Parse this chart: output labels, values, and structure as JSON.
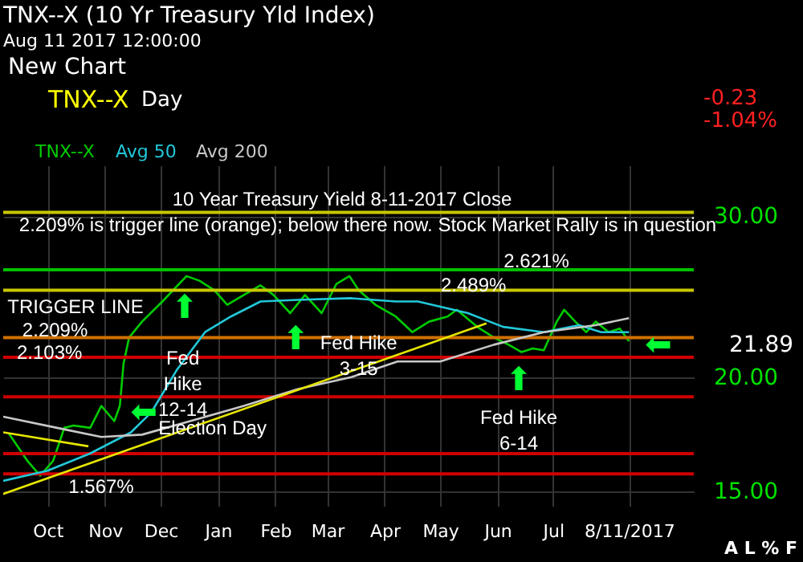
{
  "chart_data": {
    "type": "line",
    "title": "TNX--X (10 Yr Treasury Yld Index)",
    "subtitle": "Aug 11 2017 12:00:00",
    "log": "y",
    "grid": true,
    "legend": "top left",
    "marker": "none",
    "line_style": "solid",
    "xlim": [
      "2016-09-07",
      "2017-09-15"
    ],
    "xticks": [
      {
        "value": "2016-10-01",
        "label": "Oct"
      },
      {
        "value": "2016-11-01",
        "label": "Nov"
      },
      {
        "value": "2016-12-01",
        "label": "Dec"
      },
      {
        "value": "2017-01-01",
        "label": "Jan"
      },
      {
        "value": "2017-02-01",
        "label": "Feb"
      },
      {
        "value": "2017-03-01",
        "label": "Mar"
      },
      {
        "value": "2017-04-01",
        "label": "Apr"
      },
      {
        "value": "2017-05-01",
        "label": "May"
      },
      {
        "value": "2017-06-01",
        "label": "Jun"
      },
      {
        "value": "2017-07-01",
        "label": "Jul"
      },
      {
        "value": "2017-08-11",
        "label": "8/11/2017"
      }
    ],
    "ylim": [
      14.46,
      34.1
    ],
    "yticks": [
      {
        "value": 15,
        "label": "15.00"
      },
      {
        "value": 20,
        "label": "20.00"
      },
      {
        "value": 30,
        "label": "30.00"
      }
    ],
    "series": [
      {
        "name": "TNX--X",
        "color": "#00cc00",
        "x": [
          "2016-09-10",
          "2016-09-20",
          "2016-09-27",
          "2016-10-04",
          "2016-10-10",
          "2016-10-15",
          "2016-10-24",
          "2016-10-30",
          "2016-11-06",
          "2016-11-09",
          "2016-11-11",
          "2016-11-14",
          "2016-11-21",
          "2016-12-02",
          "2016-12-15",
          "2016-12-22",
          "2016-12-30",
          "2017-01-06",
          "2017-01-15",
          "2017-01-24",
          "2017-01-31",
          "2017-02-09",
          "2017-02-17",
          "2017-02-26",
          "2017-03-06",
          "2017-03-13",
          "2017-03-18",
          "2017-03-27",
          "2017-04-07",
          "2017-04-16",
          "2017-04-25",
          "2017-05-05",
          "2017-05-10",
          "2017-05-21",
          "2017-05-30",
          "2017-06-07",
          "2017-06-14",
          "2017-06-20",
          "2017-06-26",
          "2017-07-03",
          "2017-07-07",
          "2017-07-13",
          "2017-07-19",
          "2017-07-24",
          "2017-07-31",
          "2017-08-06",
          "2017-08-11"
        ],
        "values": [
          17.36,
          16.2,
          15.6,
          16.2,
          17.6,
          17.7,
          17.6,
          18.6,
          17.9,
          18.6,
          20.7,
          22.1,
          23.0,
          24.2,
          25.8,
          25.5,
          24.9,
          24.0,
          24.6,
          25.2,
          24.6,
          23.5,
          24.6,
          23.5,
          25.3,
          25.8,
          24.9,
          24.0,
          23.3,
          22.4,
          23.0,
          23.3,
          23.7,
          22.7,
          22.1,
          21.7,
          21.3,
          21.5,
          21.4,
          23.0,
          23.7,
          23.0,
          22.4,
          23.0,
          22.4,
          22.6,
          21.89
        ]
      },
      {
        "name": "Avg 50",
        "color": "#22c8d8",
        "x": [
          "2016-09-07",
          "2016-10-01",
          "2016-10-24",
          "2016-11-15",
          "2016-11-26",
          "2016-12-10",
          "2016-12-25",
          "2017-01-08",
          "2017-01-24",
          "2017-02-13",
          "2017-03-14",
          "2017-04-07",
          "2017-04-19",
          "2017-05-16",
          "2017-06-04",
          "2017-06-26",
          "2017-07-15",
          "2017-07-27",
          "2017-08-11"
        ],
        "values": [
          15.4,
          15.8,
          16.5,
          17.4,
          18.3,
          20.4,
          22.4,
          23.3,
          24.2,
          24.3,
          24.4,
          24.2,
          24.2,
          23.5,
          22.7,
          22.4,
          22.8,
          22.4,
          22.4
        ]
      },
      {
        "name": "Avg 200",
        "color": "#c8c8c8",
        "x": [
          "2016-09-07",
          "2016-10-06",
          "2016-10-30",
          "2016-11-21",
          "2016-12-17",
          "2017-01-15",
          "2017-02-13",
          "2017-03-14",
          "2017-04-08",
          "2017-05-01",
          "2017-05-30",
          "2017-06-26",
          "2017-07-24",
          "2017-08-11"
        ],
        "values": [
          18.1,
          17.6,
          17.2,
          17.3,
          17.9,
          18.6,
          19.4,
          20.0,
          20.8,
          20.8,
          21.7,
          22.4,
          22.8,
          23.2
        ]
      },
      {
        "color": "#e6e600",
        "x": [
          "2016-09-07",
          "2017-05-26"
        ],
        "values": [
          14.9,
          22.9
        ]
      },
      {
        "color": "#e6e600",
        "x": [
          "2016-09-07",
          "2016-10-23"
        ],
        "values": [
          17.4,
          16.8
        ]
      }
    ],
    "ref_lines": [
      {
        "axis": "y",
        "value": 30.3,
        "color": "#c8c800"
      },
      {
        "axis": "y",
        "value": 26.21,
        "color": "#00c000"
      },
      {
        "axis": "y",
        "value": 24.89,
        "color": "#c8c800"
      },
      {
        "axis": "y",
        "value": 22.09,
        "color": "#d07000"
      },
      {
        "axis": "y",
        "value": 21.03,
        "color": "#d00000"
      },
      {
        "axis": "y",
        "value": 19.03,
        "color": "#d00000"
      },
      {
        "axis": "y",
        "value": 16.49,
        "color": "#d00000"
      },
      {
        "axis": "y",
        "value": 15.67,
        "color": "#d00000"
      }
    ],
    "annotations": [
      "New Chart",
      "TNX--X",
      "Day",
      "-0.23",
      "-1.04%",
      "A L % F",
      "10 Year Treasury Yield 8-11-2017 Close",
      "2.209% is trigger line (orange); below there now. Stock Market Rally is in question",
      "TRIGGER LINE",
      "1.567%",
      "Fed Hike\n6-14",
      "⬆",
      "⬆",
      "⬅",
      "21.89",
      {
        "text": "2.621%",
        "x": "2017-06-22",
        "y": 26.8
      },
      {
        "text": "2.489%",
        "x": "2017-05-19",
        "y": 25.2
      },
      {
        "text": "2.209%",
        "x": "2016-10-05",
        "y": 22.5
      },
      {
        "text": "2.103%",
        "x": "2016-10-02",
        "y": 21.3
      },
      {
        "text": "Fed\nHike\n12-14",
        "x": "2016-12-13",
        "y": 21.0
      },
      {
        "text": "Election Day",
        "x": "2016-12-29",
        "y": 17.6
      },
      {
        "text": "Fed Hike\n3-15",
        "x": "2017-03-18",
        "y": 21.8
      },
      {
        "text": "⬆",
        "x": "2017-02-12",
        "y": 22.0
      },
      {
        "text": "⬅",
        "x": "2016-11-22",
        "y": 18.3
      }
    ]
  }
}
